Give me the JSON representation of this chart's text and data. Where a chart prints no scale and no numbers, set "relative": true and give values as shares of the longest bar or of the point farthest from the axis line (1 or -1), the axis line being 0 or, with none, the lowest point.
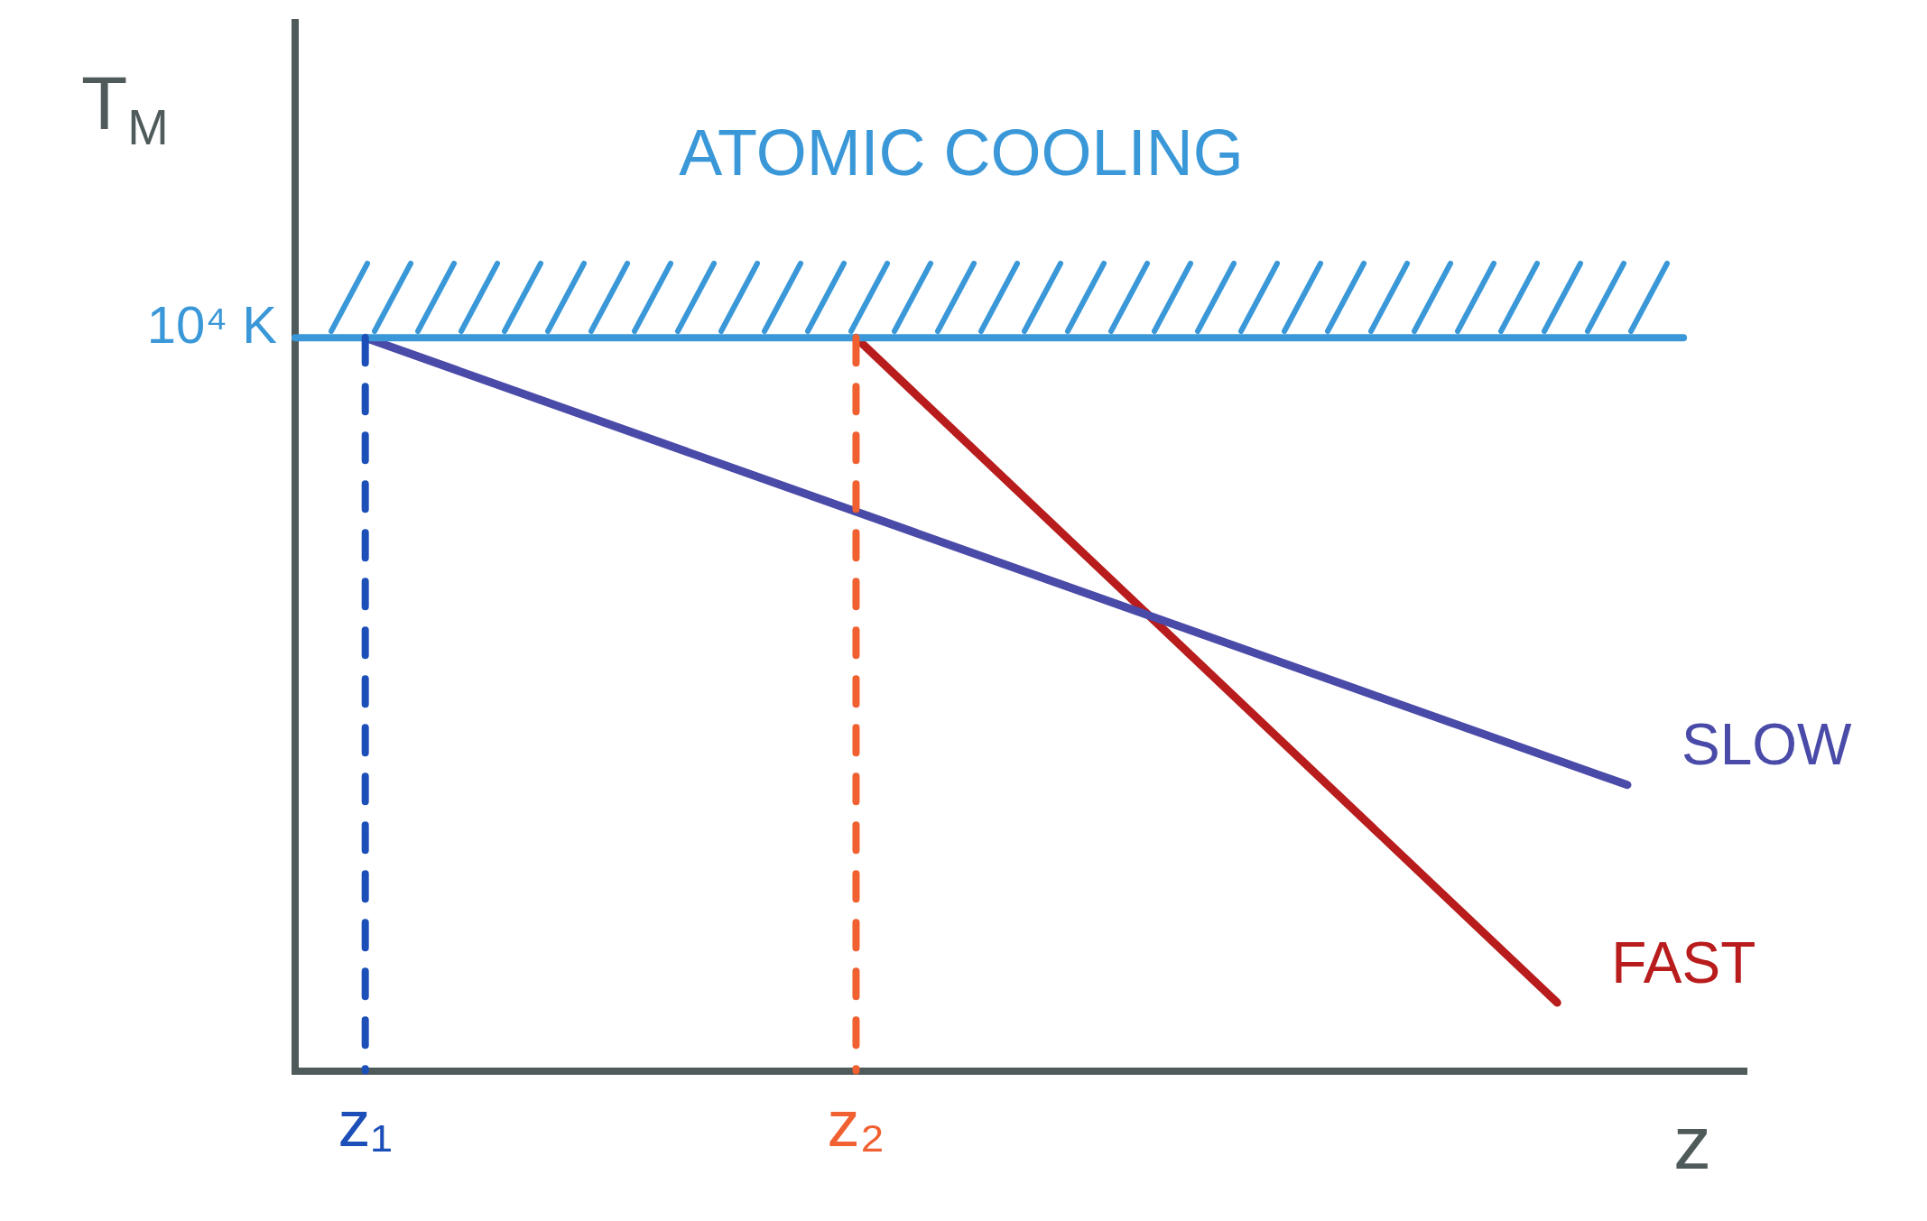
{
  "chart_data": {
    "type": "line",
    "relative": true,
    "ylabel": "T$_{M}$",
    "xlabel": "z",
    "categories": [
      null,
      "z₁",
      null,
      null,
      null,
      null,
      null,
      null,
      "z₂",
      null,
      null,
      null,
      null,
      null,
      null,
      null,
      null,
      null,
      null,
      null,
      null
    ],
    "series": [
      {
        "name": "SLOW",
        "color": "#4a4aa8",
        "values": [
          null,
          1,
          null,
          null,
          null,
          null,
          null,
          null,
          null,
          null,
          null,
          null,
          null,
          null,
          null,
          null,
          null,
          null,
          null,
          0.39,
          null
        ]
      },
      {
        "name": "FAST",
        "color": "#b81c1c",
        "values": [
          null,
          null,
          null,
          null,
          null,
          null,
          null,
          null,
          1,
          null,
          null,
          null,
          null,
          null,
          null,
          null,
          null,
          null,
          0.093,
          null,
          null
        ]
      }
    ],
    "ref_lines": [
      {
        "axis": "y",
        "value": 1,
        "label": "10⁴ K",
        "color": "#3a98d8",
        "line_style": "solid"
      },
      {
        "axis": "x",
        "value": "z₁",
        "color": "#1c4fb8",
        "line_style": "dashed"
      },
      {
        "axis": "x",
        "value": "z₂",
        "color": "#f06030",
        "line_style": "dashed"
      }
    ],
    "annotations": [
      "ATOMIC COOLING"
    ],
    "legend": false,
    "grid": false,
    "marker": "none",
    "line_style": "solid"
  }
}
